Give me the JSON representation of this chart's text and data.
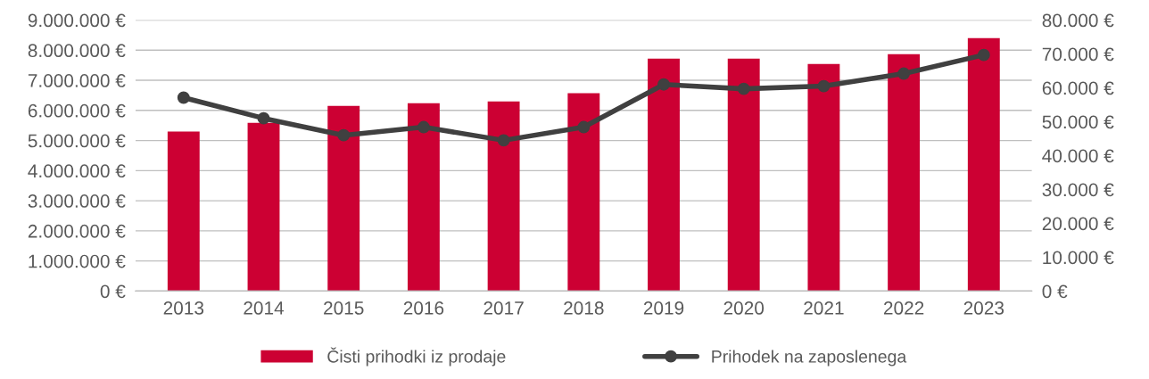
{
  "chart_data": {
    "type": "bar",
    "categories": [
      "2013",
      "2014",
      "2015",
      "2016",
      "2017",
      "2018",
      "2019",
      "2020",
      "2021",
      "2022",
      "2023"
    ],
    "series": [
      {
        "name": "Čisti prihodki iz prodaje",
        "color": "#cc0033",
        "values": [
          5300000,
          5590000,
          6150000,
          6240000,
          6300000,
          6570000,
          7720000,
          7720000,
          7540000,
          7870000,
          8400000
        ]
      },
      {
        "name": "Prihodek na zaposlenega",
        "type": "line",
        "axis": "y2",
        "color": "#404040",
        "values": [
          57100,
          51000,
          46000,
          48400,
          44500,
          48400,
          61000,
          59700,
          60500,
          64200,
          69700
        ]
      }
    ],
    "ylim": [
      0,
      9000000
    ],
    "yticks": [
      {
        "value": 0,
        "label": "0 €"
      },
      {
        "value": 1000000,
        "label": "1.000.000 €"
      },
      {
        "value": 2000000,
        "label": "2.000.000 €"
      },
      {
        "value": 3000000,
        "label": "3.000.000 €"
      },
      {
        "value": 4000000,
        "label": "4.000.000 €"
      },
      {
        "value": 5000000,
        "label": "5.000.000 €"
      },
      {
        "value": 6000000,
        "label": "6.000.000 €"
      },
      {
        "value": 7000000,
        "label": "7.000.000 €"
      },
      {
        "value": 8000000,
        "label": "8.000.000 €"
      },
      {
        "value": 9000000,
        "label": "9.000.000 €"
      }
    ],
    "y2lim": [
      0,
      80000
    ],
    "y2ticks": [
      {
        "value": 0,
        "label": "0 €"
      },
      {
        "value": 10000,
        "label": "10.000 €"
      },
      {
        "value": 20000,
        "label": "20.000 €"
      },
      {
        "value": 30000,
        "label": "30.000 €"
      },
      {
        "value": 40000,
        "label": "40.000 €"
      },
      {
        "value": 50000,
        "label": "50.000 €"
      },
      {
        "value": 60000,
        "label": "60.000 €"
      },
      {
        "value": 70000,
        "label": "70.000 €"
      },
      {
        "value": 80000,
        "label": "80.000 €"
      }
    ],
    "grid": "y",
    "legend": "bottom",
    "marker": "circle",
    "line_style": "solid"
  }
}
